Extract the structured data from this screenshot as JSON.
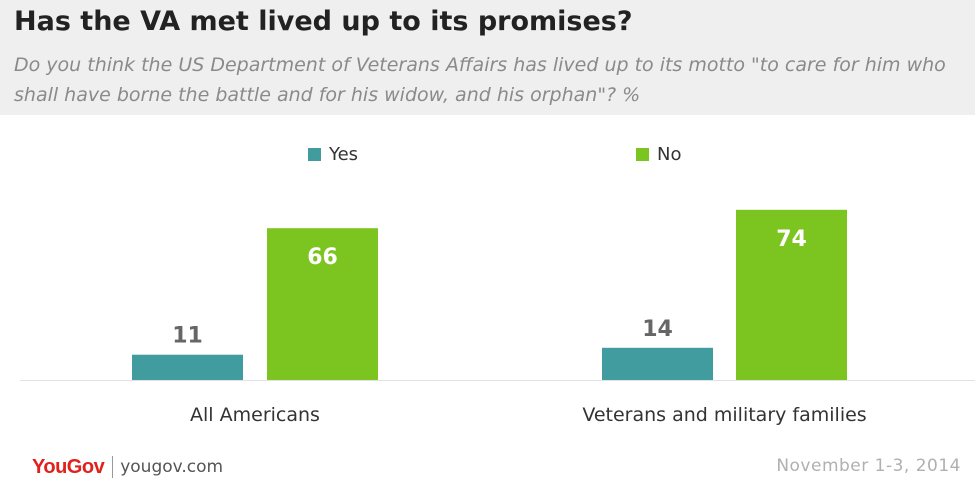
{
  "title": "Has the VA met lived up to its promises?",
  "subtitle": "Do you think the US Department of Veterans Affairs has lived up to its motto \"to care for him who shall have borne the battle and for his widow, and his orphan\"? %",
  "legend": [
    {
      "name": "Yes",
      "color": "#409c9f"
    },
    {
      "name": "No",
      "color": "#7cc520"
    }
  ],
  "footer": {
    "logo_you": "You",
    "logo_gov": "Gov",
    "site": "yougov.com",
    "date": "November 1-3, 2014"
  },
  "chart_data": {
    "type": "bar",
    "categories": [
      "All Americans",
      "Veterans and military families"
    ],
    "series": [
      {
        "name": "Yes",
        "values": [
          11,
          14
        ],
        "color": "#409c9f"
      },
      {
        "name": "No",
        "values": [
          66,
          74
        ],
        "color": "#7cc520"
      }
    ],
    "ylim": [
      0,
      80
    ],
    "grid": false,
    "legend_position": "top"
  }
}
